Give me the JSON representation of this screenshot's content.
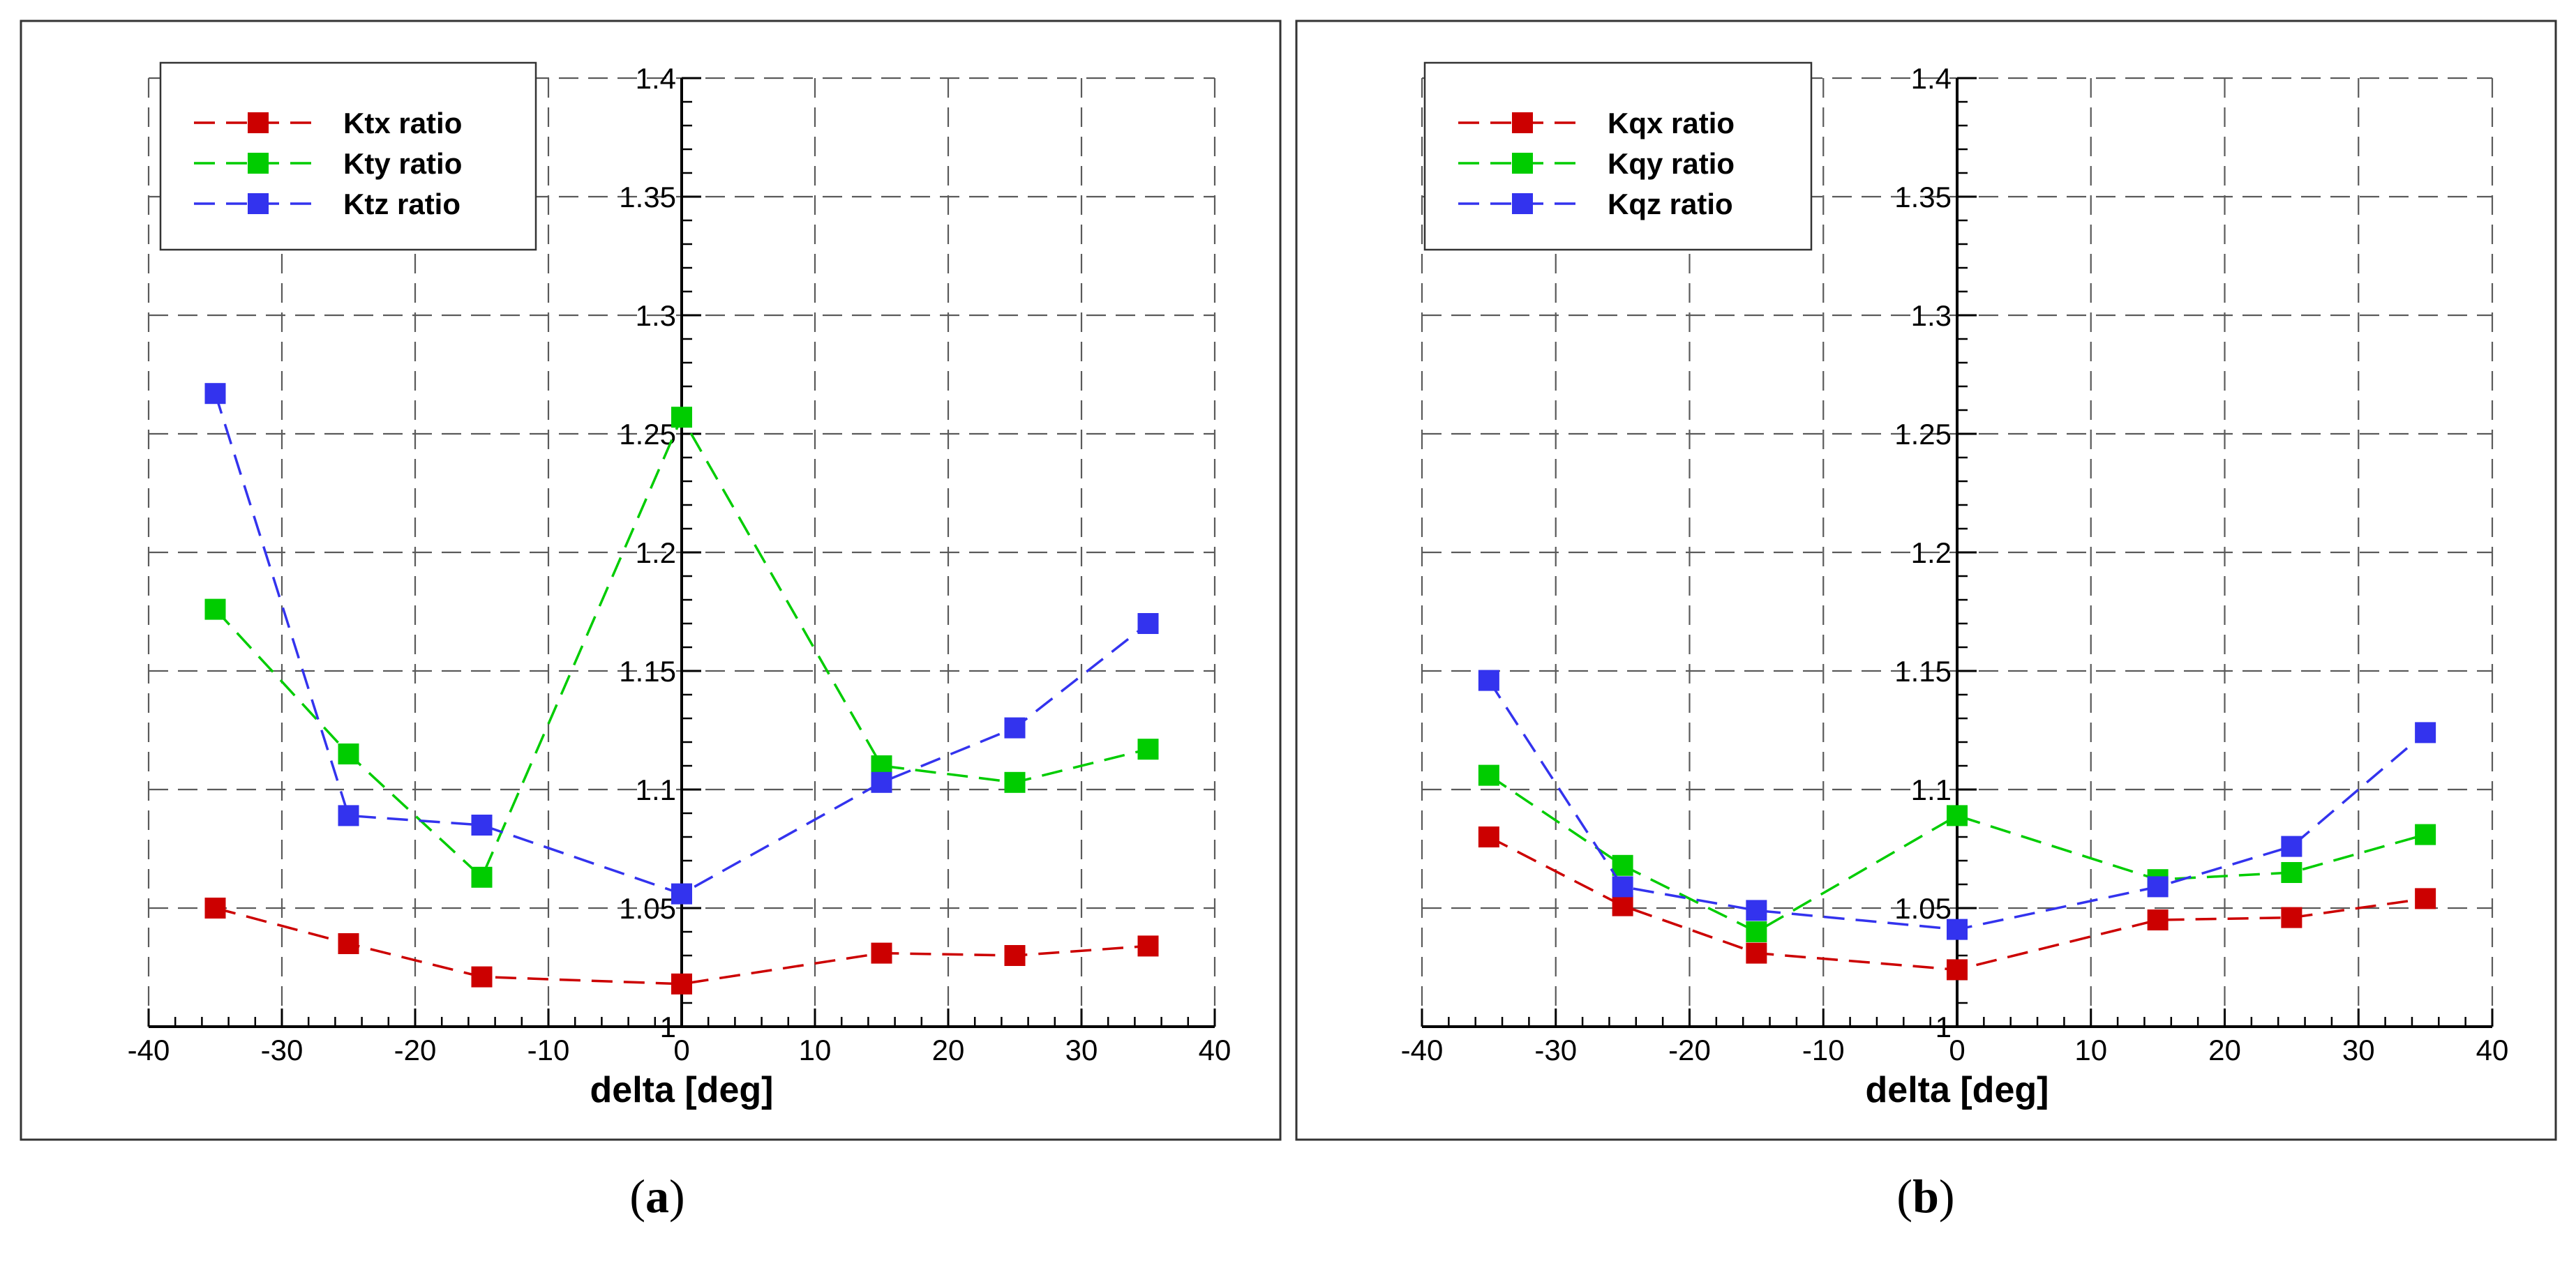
{
  "chart_data": [
    {
      "type": "line",
      "panel_label": "(a)",
      "panel_letter": "a",
      "xlabel": "delta [deg]",
      "ylabel": "",
      "xlim": [
        -40,
        40
      ],
      "ylim": [
        1,
        1.4
      ],
      "xticks": [
        -40,
        -30,
        -20,
        -10,
        0,
        10,
        20,
        30,
        40
      ],
      "yticks": [
        1,
        1.05,
        1.1,
        1.15,
        1.2,
        1.25,
        1.3,
        1.35,
        1.4
      ],
      "xtick_labels": [
        "-40",
        "-30",
        "-20",
        "-10",
        "0",
        "10",
        "20",
        "30",
        "40"
      ],
      "ytick_labels": [
        "1",
        "1.05",
        "1.1",
        "1.15",
        "1.2",
        "1.25",
        "1.3",
        "1.35",
        "1.4"
      ],
      "grid": true,
      "legend_position": "top-left",
      "x": [
        -35,
        -25,
        -15,
        0,
        15,
        25,
        35
      ],
      "series": [
        {
          "name": "Ktx ratio",
          "color": "#cc0000",
          "values": [
            1.05,
            1.035,
            1.021,
            1.018,
            1.031,
            1.03,
            1.034
          ]
        },
        {
          "name": "Kty ratio",
          "color": "#00cc00",
          "values": [
            1.176,
            1.115,
            1.063,
            1.257,
            1.11,
            1.103,
            1.117
          ]
        },
        {
          "name": "Ktz ratio",
          "color": "#3333ee",
          "values": [
            1.267,
            1.089,
            1.085,
            1.056,
            1.103,
            1.126,
            1.17
          ]
        }
      ]
    },
    {
      "type": "line",
      "panel_label": "(b)",
      "panel_letter": "b",
      "xlabel": "delta [deg]",
      "ylabel": "",
      "xlim": [
        -40,
        40
      ],
      "ylim": [
        1,
        1.4
      ],
      "xticks": [
        -40,
        -30,
        -20,
        -10,
        0,
        10,
        20,
        30,
        40
      ],
      "yticks": [
        1,
        1.05,
        1.1,
        1.15,
        1.2,
        1.25,
        1.3,
        1.35,
        1.4
      ],
      "xtick_labels": [
        "-40",
        "-30",
        "-20",
        "-10",
        "0",
        "10",
        "20",
        "30",
        "40"
      ],
      "ytick_labels": [
        "1",
        "1.05",
        "1.1",
        "1.15",
        "1.2",
        "1.25",
        "1.3",
        "1.35",
        "1.4"
      ],
      "grid": true,
      "legend_position": "top-left",
      "x": [
        -35,
        -25,
        -15,
        0,
        15,
        25,
        35
      ],
      "series": [
        {
          "name": "Kqx ratio",
          "color": "#cc0000",
          "values": [
            1.08,
            1.051,
            1.031,
            1.024,
            1.045,
            1.046,
            1.054
          ]
        },
        {
          "name": "Kqy ratio",
          "color": "#00cc00",
          "values": [
            1.106,
            1.068,
            1.04,
            1.089,
            1.062,
            1.065,
            1.081
          ]
        },
        {
          "name": "Kqz ratio",
          "color": "#3333ee",
          "values": [
            1.146,
            1.059,
            1.049,
            1.041,
            1.059,
            1.076,
            1.124
          ]
        }
      ]
    }
  ]
}
